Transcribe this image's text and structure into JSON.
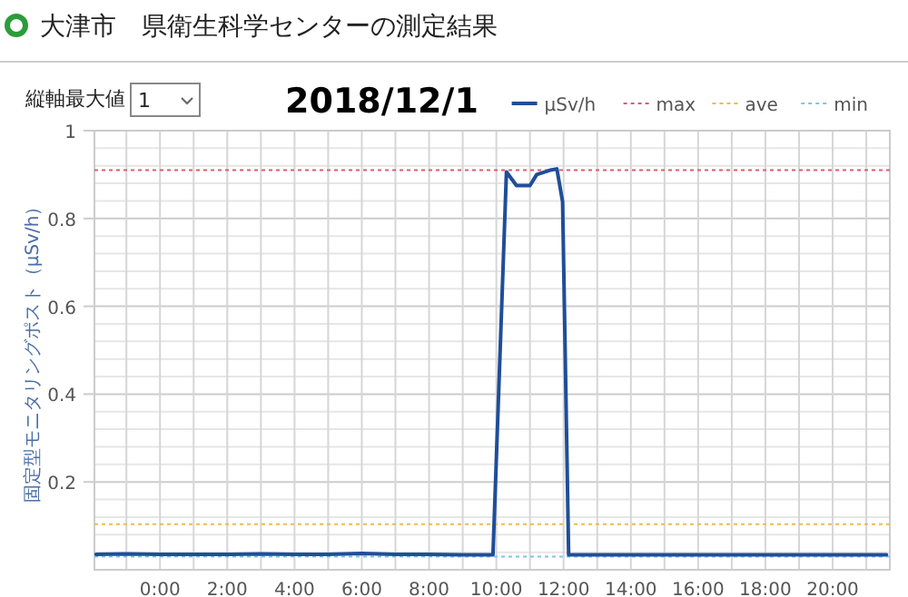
{
  "chart_data": {
    "type": "line",
    "title": "大津市　県衛生科学センターの測定結果",
    "subtitle": "2018/12/1",
    "ylabel": "固定型モニタリングポスト（μSv/h）",
    "annotations": [
      "縦軸最大値",
      "1"
    ],
    "x": [
      -1.9,
      -1,
      0,
      1,
      2,
      3,
      4,
      5,
      6,
      7,
      8,
      9,
      9.9,
      10.3,
      10.6,
      11.0,
      11.2,
      11.6,
      11.8,
      11.97,
      12.15,
      13,
      14,
      15,
      16,
      17,
      18,
      19,
      20,
      21,
      21.6
    ],
    "series": [
      {
        "name": "μSv/h",
        "color": "#1f4e99",
        "values": [
          0.035,
          0.036,
          0.035,
          0.035,
          0.035,
          0.036,
          0.035,
          0.035,
          0.037,
          0.035,
          0.035,
          0.034,
          0.034,
          0.906,
          0.875,
          0.875,
          0.9,
          0.91,
          0.913,
          0.838,
          0.034,
          0.034,
          0.034,
          0.034,
          0.034,
          0.034,
          0.034,
          0.034,
          0.034,
          0.034,
          0.034
        ]
      }
    ],
    "ref_lines": [
      {
        "axis": "y",
        "value": 0.91,
        "label": "max",
        "color": "#e05a6e",
        "line_style": "dotted"
      },
      {
        "axis": "y",
        "value": 0.104,
        "label": "ave",
        "color": "#f2b84b",
        "line_style": "dotted"
      },
      {
        "axis": "y",
        "value": 0.03,
        "label": "min",
        "color": "#7cc6e8",
        "line_style": "dotted"
      }
    ],
    "xlim": [
      -1.95,
      21.7
    ],
    "xticks": [
      {
        "value": -1,
        "label": null
      },
      {
        "value": 0,
        "label": "0:00"
      },
      {
        "value": 1,
        "label": null
      },
      {
        "value": 2,
        "label": "2:00"
      },
      {
        "value": 3,
        "label": null
      },
      {
        "value": 4,
        "label": "4:00"
      },
      {
        "value": 5,
        "label": null
      },
      {
        "value": 6,
        "label": "6:00"
      },
      {
        "value": 7,
        "label": null
      },
      {
        "value": 8,
        "label": "8:00"
      },
      {
        "value": 9,
        "label": null
      },
      {
        "value": 10,
        "label": "10:00"
      },
      {
        "value": 11,
        "label": null
      },
      {
        "value": 12,
        "label": "12:00"
      },
      {
        "value": 13,
        "label": null
      },
      {
        "value": 14,
        "label": "14:00"
      },
      {
        "value": 15,
        "label": null
      },
      {
        "value": 16,
        "label": "16:00"
      },
      {
        "value": 17,
        "label": null
      },
      {
        "value": 18,
        "label": "18:00"
      },
      {
        "value": 19,
        "label": null
      },
      {
        "value": 20,
        "label": "20:00"
      },
      {
        "value": 21,
        "label": null
      }
    ],
    "ylim": [
      0,
      1
    ],
    "yticks": [
      {
        "value": 0,
        "label": null
      },
      {
        "value": 0.04,
        "label": null
      },
      {
        "value": 0.08,
        "label": null
      },
      {
        "value": 0.12,
        "label": null
      },
      {
        "value": 0.16,
        "label": null
      },
      0.2,
      {
        "value": 0.24,
        "label": null
      },
      {
        "value": 0.28,
        "label": null
      },
      {
        "value": 0.32,
        "label": null
      },
      {
        "value": 0.36,
        "label": null
      },
      0.4,
      {
        "value": 0.44,
        "label": null
      },
      {
        "value": 0.48,
        "label": null
      },
      {
        "value": 0.52,
        "label": null
      },
      {
        "value": 0.56,
        "label": null
      },
      0.6,
      {
        "value": 0.64,
        "label": null
      },
      {
        "value": 0.68,
        "label": null
      },
      {
        "value": 0.72,
        "label": null
      },
      {
        "value": 0.76,
        "label": null
      },
      0.8,
      {
        "value": 0.84,
        "label": null
      },
      {
        "value": 0.88,
        "label": null
      },
      {
        "value": 0.92,
        "label": null
      },
      {
        "value": 0.96,
        "label": null
      },
      1
    ],
    "grid": true,
    "legend": "top right",
    "marker": "none",
    "line_style": "solid"
  }
}
